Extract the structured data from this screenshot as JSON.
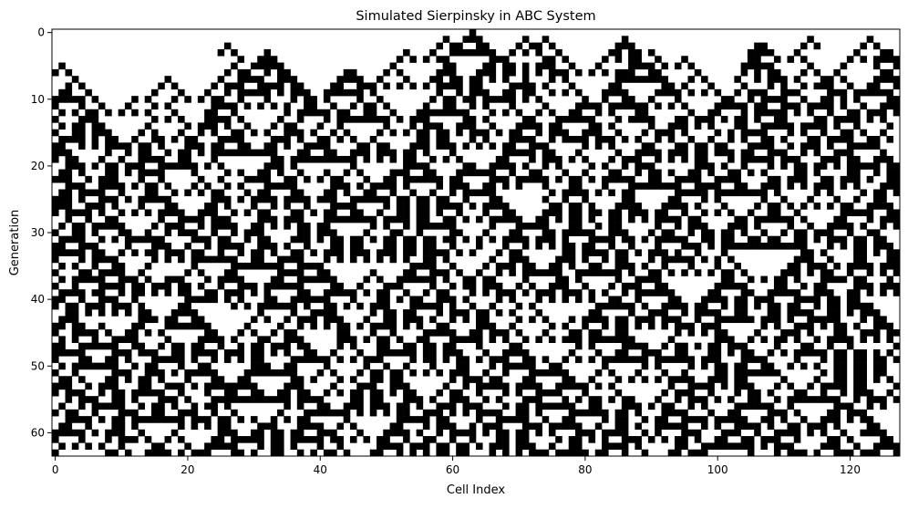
{
  "chart_data": {
    "type": "heatmap",
    "title": "Simulated Sierpinsky in ABC System",
    "xlabel": "Cell Index",
    "ylabel": "Generation",
    "x_range": [
      0,
      127
    ],
    "y_range": [
      0,
      63
    ],
    "y_axis_inverted": true,
    "x_ticks": [
      0,
      20,
      40,
      60,
      80,
      100,
      120
    ],
    "y_ticks": [
      0,
      10,
      20,
      30,
      40,
      50,
      60
    ],
    "grid": false,
    "colormap": {
      "0": "#ffffff",
      "1": "#000000"
    },
    "cell_states": "binary (black = 1, white = 0); initial generation approximated as a single active cell near index 63"
  }
}
